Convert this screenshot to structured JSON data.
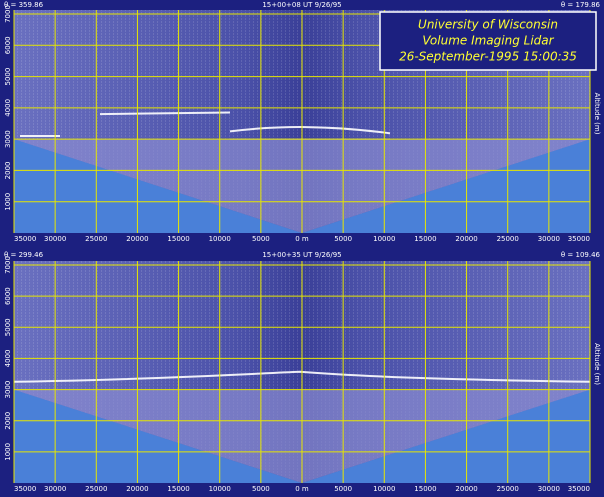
{
  "title_box": {
    "lines": [
      "University of Wisconsin",
      "Volume Imaging Lidar",
      "26-September-1995 15:00:35"
    ]
  },
  "panels": [
    {
      "header_left": "θ = 359.86",
      "header_center": "15+00+08 UT  9/26/95",
      "header_right": "θ = 179.86",
      "y_axis_label": "Altitude (m)",
      "yticks": [
        "1000",
        "2000",
        "3000",
        "4000",
        "5000",
        "6000",
        "7000"
      ],
      "xticks": [
        "35000",
        "30000",
        "25000",
        "20000",
        "15000",
        "10000",
        "5000",
        "0 m",
        "5000",
        "10000",
        "15000",
        "20000",
        "25000",
        "30000",
        "35000"
      ]
    },
    {
      "header_left": "θ = 299.46",
      "header_center": "15+00+35 UT  9/26/95",
      "header_right": "θ = 109.46",
      "y_axis_label": "Altitude (m)",
      "yticks": [
        "1000",
        "2000",
        "3000",
        "4000",
        "5000",
        "6000",
        "7000"
      ],
      "xticks": [
        "35000",
        "30000",
        "25000",
        "20000",
        "15000",
        "10000",
        "5000",
        "0 m",
        "5000",
        "10000",
        "15000",
        "20000",
        "25000",
        "30000",
        "35000"
      ]
    }
  ]
}
